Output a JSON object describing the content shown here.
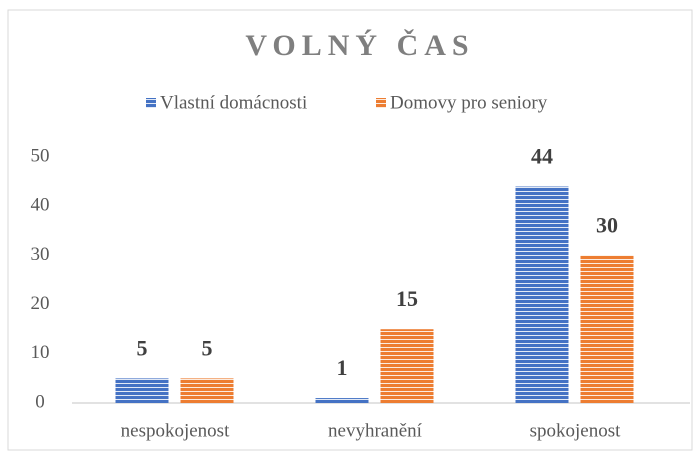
{
  "chart_data": {
    "type": "bar",
    "title": "VOLNÝ ČAS",
    "categories": [
      "nespokojenost",
      "nevyhranění",
      "spokojenost"
    ],
    "series": [
      {
        "name": "Vlastní domácnosti",
        "color": "#4472c4",
        "values": [
          5,
          1,
          44
        ]
      },
      {
        "name": "Domovy pro seniory",
        "color": "#ed7d31",
        "values": [
          5,
          15,
          30
        ]
      }
    ],
    "ylim": [
      0,
      50
    ],
    "yticks": [
      0,
      10,
      20,
      30,
      40,
      50
    ],
    "grid": false,
    "legend": "top"
  }
}
